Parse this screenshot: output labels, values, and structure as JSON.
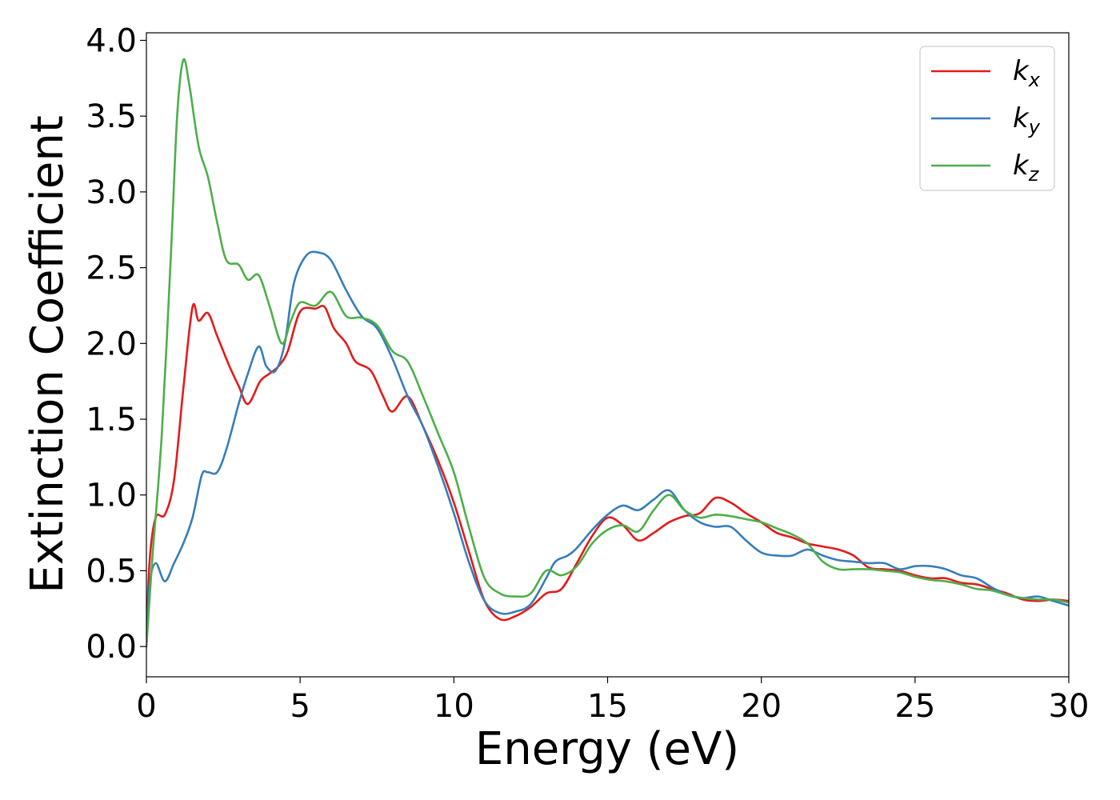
{
  "chart_data": {
    "type": "line",
    "title": "",
    "xlabel": "Energy (eV)",
    "ylabel": "Extinction Coefficient",
    "xlim": [
      0,
      30
    ],
    "ylim": [
      -0.2,
      4.05
    ],
    "xticks": [
      0,
      5,
      10,
      15,
      20,
      25,
      30
    ],
    "xtick_labels": [
      "0",
      "5",
      "10",
      "15",
      "20",
      "25",
      "30"
    ],
    "yticks": [
      0.0,
      0.5,
      1.0,
      1.5,
      2.0,
      2.5,
      3.0,
      3.5,
      4.0
    ],
    "ytick_labels": [
      "0.0",
      "0.5",
      "1.0",
      "1.5",
      "2.0",
      "2.5",
      "3.0",
      "3.5",
      "4.0"
    ],
    "grid": false,
    "legend": "top-right",
    "series": [
      {
        "name": "k",
        "subscript": "x",
        "color": "#e41a1c",
        "points": [
          [
            0,
            0
          ],
          [
            0.1,
            0.55
          ],
          [
            0.3,
            0.85
          ],
          [
            0.6,
            0.87
          ],
          [
            0.9,
            1.1
          ],
          [
            1.2,
            1.7
          ],
          [
            1.5,
            2.24
          ],
          [
            1.7,
            2.15
          ],
          [
            2.0,
            2.2
          ],
          [
            2.3,
            2.05
          ],
          [
            2.7,
            1.85
          ],
          [
            3.0,
            1.72
          ],
          [
            3.3,
            1.6
          ],
          [
            3.7,
            1.75
          ],
          [
            4.0,
            1.8
          ],
          [
            4.3,
            1.85
          ],
          [
            4.6,
            1.95
          ],
          [
            5.0,
            2.21
          ],
          [
            5.5,
            2.23
          ],
          [
            5.8,
            2.24
          ],
          [
            6.1,
            2.1
          ],
          [
            6.5,
            2.0
          ],
          [
            6.8,
            1.88
          ],
          [
            7.3,
            1.82
          ],
          [
            7.7,
            1.65
          ],
          [
            8.0,
            1.55
          ],
          [
            8.5,
            1.65
          ],
          [
            9.0,
            1.45
          ],
          [
            9.5,
            1.22
          ],
          [
            10.0,
            0.95
          ],
          [
            10.5,
            0.62
          ],
          [
            11.0,
            0.3
          ],
          [
            11.5,
            0.18
          ],
          [
            12.0,
            0.2
          ],
          [
            12.5,
            0.26
          ],
          [
            13.0,
            0.35
          ],
          [
            13.5,
            0.38
          ],
          [
            14.0,
            0.55
          ],
          [
            14.5,
            0.73
          ],
          [
            15.0,
            0.85
          ],
          [
            15.5,
            0.8
          ],
          [
            16.0,
            0.7
          ],
          [
            16.5,
            0.75
          ],
          [
            17.0,
            0.82
          ],
          [
            17.5,
            0.86
          ],
          [
            18.0,
            0.88
          ],
          [
            18.5,
            0.98
          ],
          [
            19.0,
            0.95
          ],
          [
            19.5,
            0.88
          ],
          [
            20.0,
            0.82
          ],
          [
            20.5,
            0.75
          ],
          [
            21.0,
            0.72
          ],
          [
            21.5,
            0.68
          ],
          [
            22.0,
            0.66
          ],
          [
            22.5,
            0.64
          ],
          [
            23.0,
            0.6
          ],
          [
            23.5,
            0.52
          ],
          [
            24.0,
            0.51
          ],
          [
            24.5,
            0.5
          ],
          [
            25.0,
            0.47
          ],
          [
            25.5,
            0.45
          ],
          [
            26.0,
            0.45
          ],
          [
            26.5,
            0.42
          ],
          [
            27.0,
            0.41
          ],
          [
            27.5,
            0.38
          ],
          [
            28.0,
            0.35
          ],
          [
            28.5,
            0.31
          ],
          [
            29.0,
            0.3
          ],
          [
            29.5,
            0.31
          ],
          [
            30.0,
            0.3
          ]
        ]
      },
      {
        "name": "k",
        "subscript": "y",
        "color": "#377eb8",
        "points": [
          [
            0,
            0
          ],
          [
            0.1,
            0.4
          ],
          [
            0.3,
            0.55
          ],
          [
            0.6,
            0.43
          ],
          [
            0.9,
            0.55
          ],
          [
            1.2,
            0.68
          ],
          [
            1.5,
            0.85
          ],
          [
            1.8,
            1.13
          ],
          [
            2.0,
            1.15
          ],
          [
            2.3,
            1.15
          ],
          [
            2.6,
            1.3
          ],
          [
            3.0,
            1.6
          ],
          [
            3.3,
            1.8
          ],
          [
            3.65,
            1.98
          ],
          [
            3.9,
            1.85
          ],
          [
            4.2,
            1.82
          ],
          [
            4.5,
            2.0
          ],
          [
            4.8,
            2.4
          ],
          [
            5.2,
            2.58
          ],
          [
            5.6,
            2.6
          ],
          [
            6.0,
            2.55
          ],
          [
            6.5,
            2.35
          ],
          [
            7.0,
            2.18
          ],
          [
            7.5,
            2.1
          ],
          [
            8.0,
            1.9
          ],
          [
            8.5,
            1.65
          ],
          [
            9.0,
            1.45
          ],
          [
            9.5,
            1.18
          ],
          [
            10.0,
            0.88
          ],
          [
            10.5,
            0.55
          ],
          [
            11.0,
            0.3
          ],
          [
            11.5,
            0.22
          ],
          [
            12.0,
            0.23
          ],
          [
            12.5,
            0.28
          ],
          [
            13.0,
            0.45
          ],
          [
            13.3,
            0.56
          ],
          [
            13.7,
            0.6
          ],
          [
            14.0,
            0.65
          ],
          [
            14.5,
            0.77
          ],
          [
            15.0,
            0.87
          ],
          [
            15.5,
            0.93
          ],
          [
            16.0,
            0.9
          ],
          [
            16.5,
            0.97
          ],
          [
            17.0,
            1.03
          ],
          [
            17.5,
            0.9
          ],
          [
            18.0,
            0.82
          ],
          [
            18.5,
            0.79
          ],
          [
            19.0,
            0.79
          ],
          [
            19.5,
            0.7
          ],
          [
            20.0,
            0.62
          ],
          [
            20.5,
            0.6
          ],
          [
            21.0,
            0.6
          ],
          [
            21.5,
            0.64
          ],
          [
            22.0,
            0.6
          ],
          [
            22.5,
            0.57
          ],
          [
            23.0,
            0.56
          ],
          [
            23.5,
            0.55
          ],
          [
            24.0,
            0.55
          ],
          [
            24.5,
            0.51
          ],
          [
            25.0,
            0.53
          ],
          [
            25.5,
            0.53
          ],
          [
            26.0,
            0.51
          ],
          [
            26.5,
            0.47
          ],
          [
            27.0,
            0.45
          ],
          [
            27.5,
            0.39
          ],
          [
            28.0,
            0.34
          ],
          [
            28.5,
            0.32
          ],
          [
            29.0,
            0.33
          ],
          [
            29.5,
            0.3
          ],
          [
            30.0,
            0.27
          ]
        ]
      },
      {
        "name": "k",
        "subscript": "z",
        "color": "#4daf4a",
        "points": [
          [
            0,
            0
          ],
          [
            0.2,
            0.6
          ],
          [
            0.5,
            1.4
          ],
          [
            0.8,
            2.6
          ],
          [
            1.0,
            3.5
          ],
          [
            1.2,
            3.87
          ],
          [
            1.4,
            3.7
          ],
          [
            1.7,
            3.3
          ],
          [
            2.0,
            3.1
          ],
          [
            2.3,
            2.8
          ],
          [
            2.6,
            2.55
          ],
          [
            3.0,
            2.52
          ],
          [
            3.3,
            2.42
          ],
          [
            3.65,
            2.45
          ],
          [
            4.0,
            2.25
          ],
          [
            4.4,
            2.0
          ],
          [
            4.7,
            2.15
          ],
          [
            5.0,
            2.27
          ],
          [
            5.5,
            2.25
          ],
          [
            6.0,
            2.34
          ],
          [
            6.5,
            2.18
          ],
          [
            7.0,
            2.17
          ],
          [
            7.5,
            2.12
          ],
          [
            8.0,
            1.95
          ],
          [
            8.5,
            1.88
          ],
          [
            9.0,
            1.65
          ],
          [
            9.5,
            1.4
          ],
          [
            10.0,
            1.15
          ],
          [
            10.5,
            0.78
          ],
          [
            11.0,
            0.45
          ],
          [
            11.5,
            0.35
          ],
          [
            12.0,
            0.33
          ],
          [
            12.5,
            0.35
          ],
          [
            13.0,
            0.5
          ],
          [
            13.5,
            0.47
          ],
          [
            14.0,
            0.53
          ],
          [
            14.5,
            0.68
          ],
          [
            15.0,
            0.77
          ],
          [
            15.5,
            0.8
          ],
          [
            16.0,
            0.76
          ],
          [
            16.5,
            0.9
          ],
          [
            17.0,
            1.0
          ],
          [
            17.5,
            0.9
          ],
          [
            18.0,
            0.85
          ],
          [
            18.5,
            0.87
          ],
          [
            19.0,
            0.86
          ],
          [
            19.5,
            0.84
          ],
          [
            20.0,
            0.82
          ],
          [
            20.5,
            0.78
          ],
          [
            21.0,
            0.74
          ],
          [
            21.5,
            0.68
          ],
          [
            22.0,
            0.56
          ],
          [
            22.5,
            0.51
          ],
          [
            23.0,
            0.51
          ],
          [
            23.5,
            0.51
          ],
          [
            24.0,
            0.5
          ],
          [
            24.5,
            0.49
          ],
          [
            25.0,
            0.46
          ],
          [
            25.5,
            0.44
          ],
          [
            26.0,
            0.43
          ],
          [
            26.5,
            0.41
          ],
          [
            27.0,
            0.38
          ],
          [
            27.5,
            0.37
          ],
          [
            28.0,
            0.34
          ],
          [
            28.5,
            0.32
          ],
          [
            29.0,
            0.31
          ],
          [
            29.5,
            0.31
          ],
          [
            30.0,
            0.29
          ]
        ]
      }
    ]
  }
}
